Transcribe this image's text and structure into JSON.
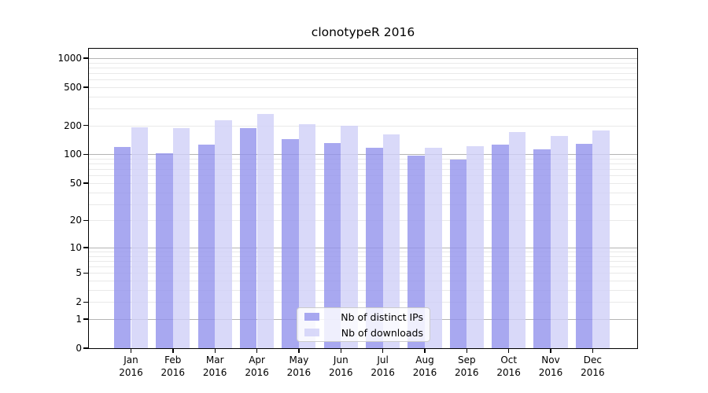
{
  "chart_data": {
    "type": "bar",
    "title": "clonotypeR 2016",
    "scale": "log1p",
    "categories": [
      "Jan",
      "Feb",
      "Mar",
      "Apr",
      "May",
      "Jun",
      "Jul",
      "Aug",
      "Sep",
      "Oct",
      "Nov",
      "Dec"
    ],
    "category_year": "2016",
    "series": [
      {
        "name": "Nb of distinct IPs",
        "color": "rgba(146,146,236,0.8)",
        "values": [
          120,
          103,
          126,
          187,
          145,
          131,
          118,
          97,
          89,
          127,
          113,
          128
        ]
      },
      {
        "name": "Nb of downloads",
        "color": "rgba(208,208,248,0.8)",
        "values": [
          191,
          189,
          227,
          263,
          206,
          199,
          161,
          117,
          123,
          170,
          156,
          177
        ]
      }
    ],
    "yticks": [
      0,
      1,
      2,
      5,
      10,
      20,
      50,
      100,
      200,
      500,
      1000
    ],
    "ylim": [
      0,
      1250
    ],
    "xlabel": "",
    "ylabel": "",
    "grid": {
      "major_at": [
        1,
        10,
        100,
        1000
      ],
      "minor_per_decade": [
        2,
        3,
        4,
        5,
        6,
        7,
        8,
        9
      ],
      "enabled": true
    },
    "legend_position": "bottom-center",
    "colors": {
      "frame": "#000000",
      "major_grid": "#b4b4b4",
      "minor_grid": "#e9e9e9",
      "background": "#ffffff",
      "text": "#000000"
    }
  }
}
